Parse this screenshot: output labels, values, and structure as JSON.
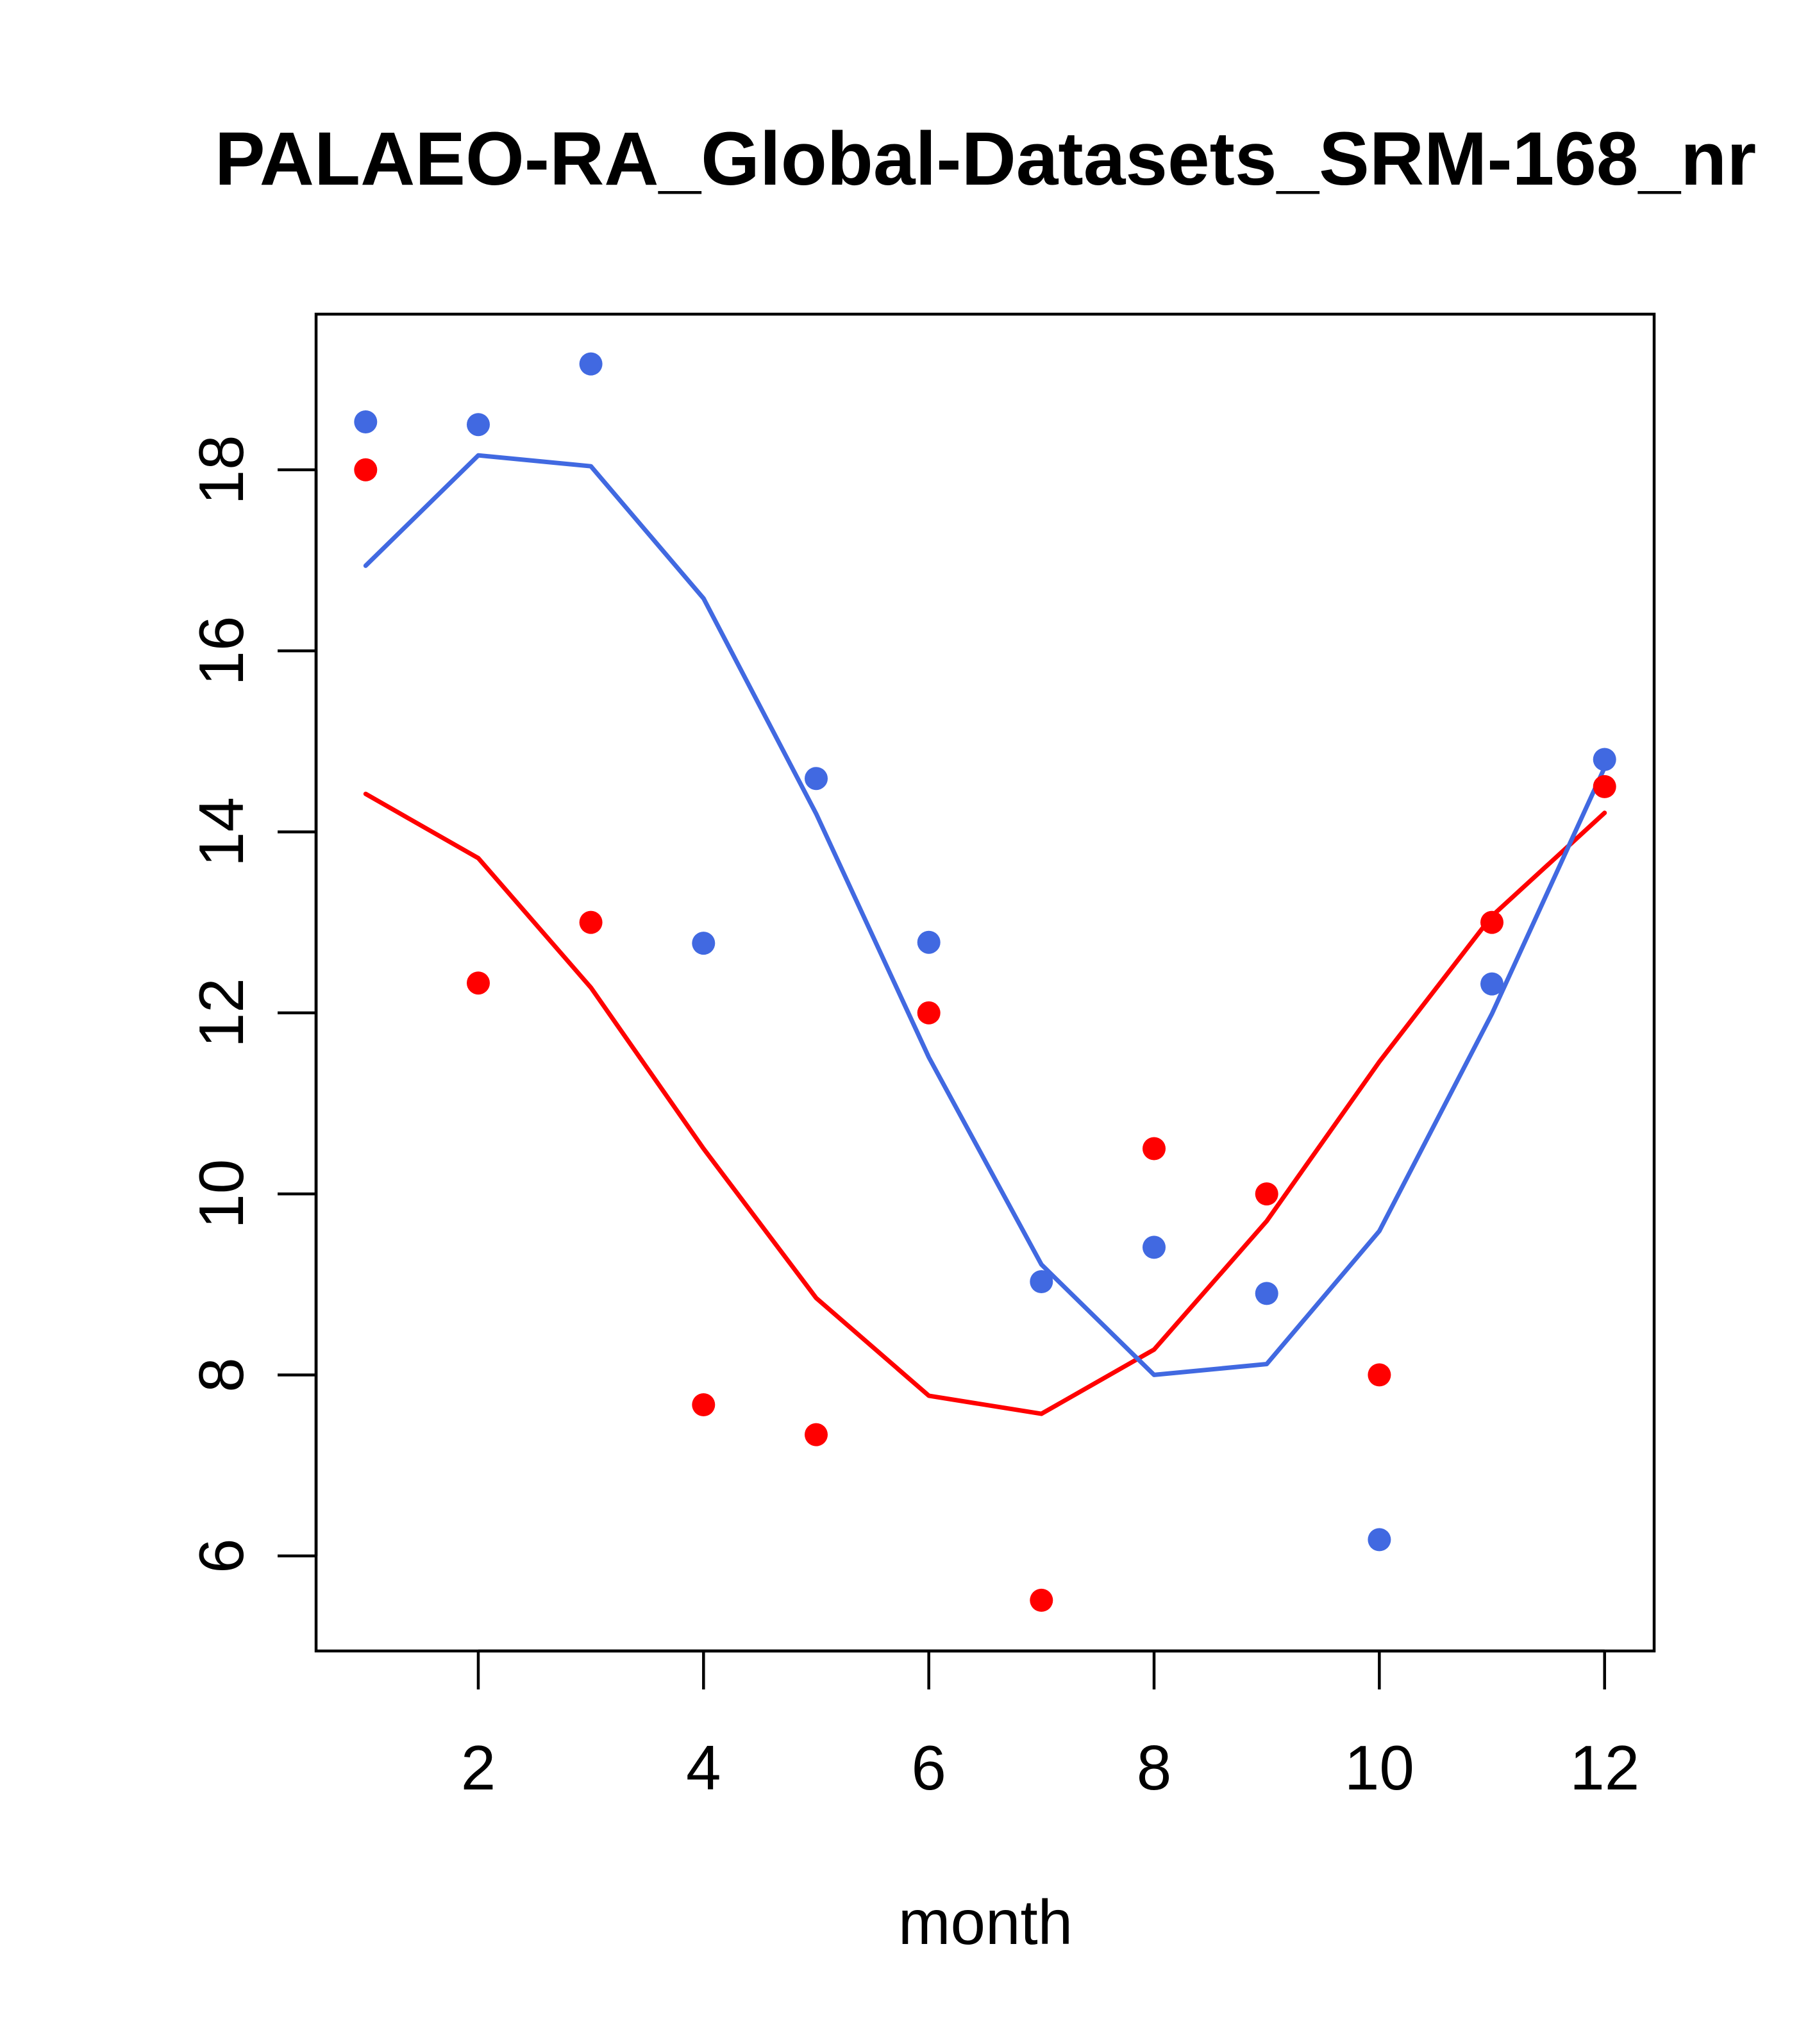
{
  "chart_data": {
    "type": "line",
    "title": "PALAEO-RA_Global-Datasets_SRM-168_nr",
    "xlabel": "month",
    "ylabel": "",
    "xlim": [
      0.56,
      12.44
    ],
    "ylim": [
      4.95,
      19.72
    ],
    "xticks": [
      2,
      4,
      6,
      8,
      10,
      12
    ],
    "yticks": [
      6,
      8,
      10,
      12,
      14,
      16,
      18
    ],
    "grid": false,
    "legend": "none",
    "x": [
      1,
      2,
      3,
      4,
      5,
      6,
      7,
      8,
      9,
      10,
      11,
      12
    ],
    "series": [
      {
        "name": "red-points",
        "kind": "points",
        "color": "#FF0000",
        "values": [
          18.0,
          12.33,
          13.0,
          7.67,
          7.34,
          12.0,
          5.51,
          10.5,
          10.0,
          8.0,
          13.0,
          14.5
        ]
      },
      {
        "name": "blue-points",
        "kind": "points",
        "color": "#4169E1",
        "values": [
          18.53,
          18.5,
          19.17,
          12.77,
          14.59,
          12.78,
          9.03,
          9.41,
          8.9,
          6.18,
          12.32,
          14.8
        ]
      },
      {
        "name": "red-line",
        "kind": "line",
        "color": "#FF0000",
        "values": [
          14.42,
          13.71,
          12.28,
          10.5,
          8.85,
          7.77,
          7.57,
          8.28,
          9.7,
          11.46,
          13.07,
          14.21
        ]
      },
      {
        "name": "blue-line",
        "kind": "line",
        "color": "#4169E1",
        "values": [
          16.94,
          18.16,
          18.04,
          16.58,
          14.2,
          11.51,
          9.22,
          8.0,
          8.12,
          9.59,
          11.99,
          14.71
        ]
      }
    ]
  }
}
